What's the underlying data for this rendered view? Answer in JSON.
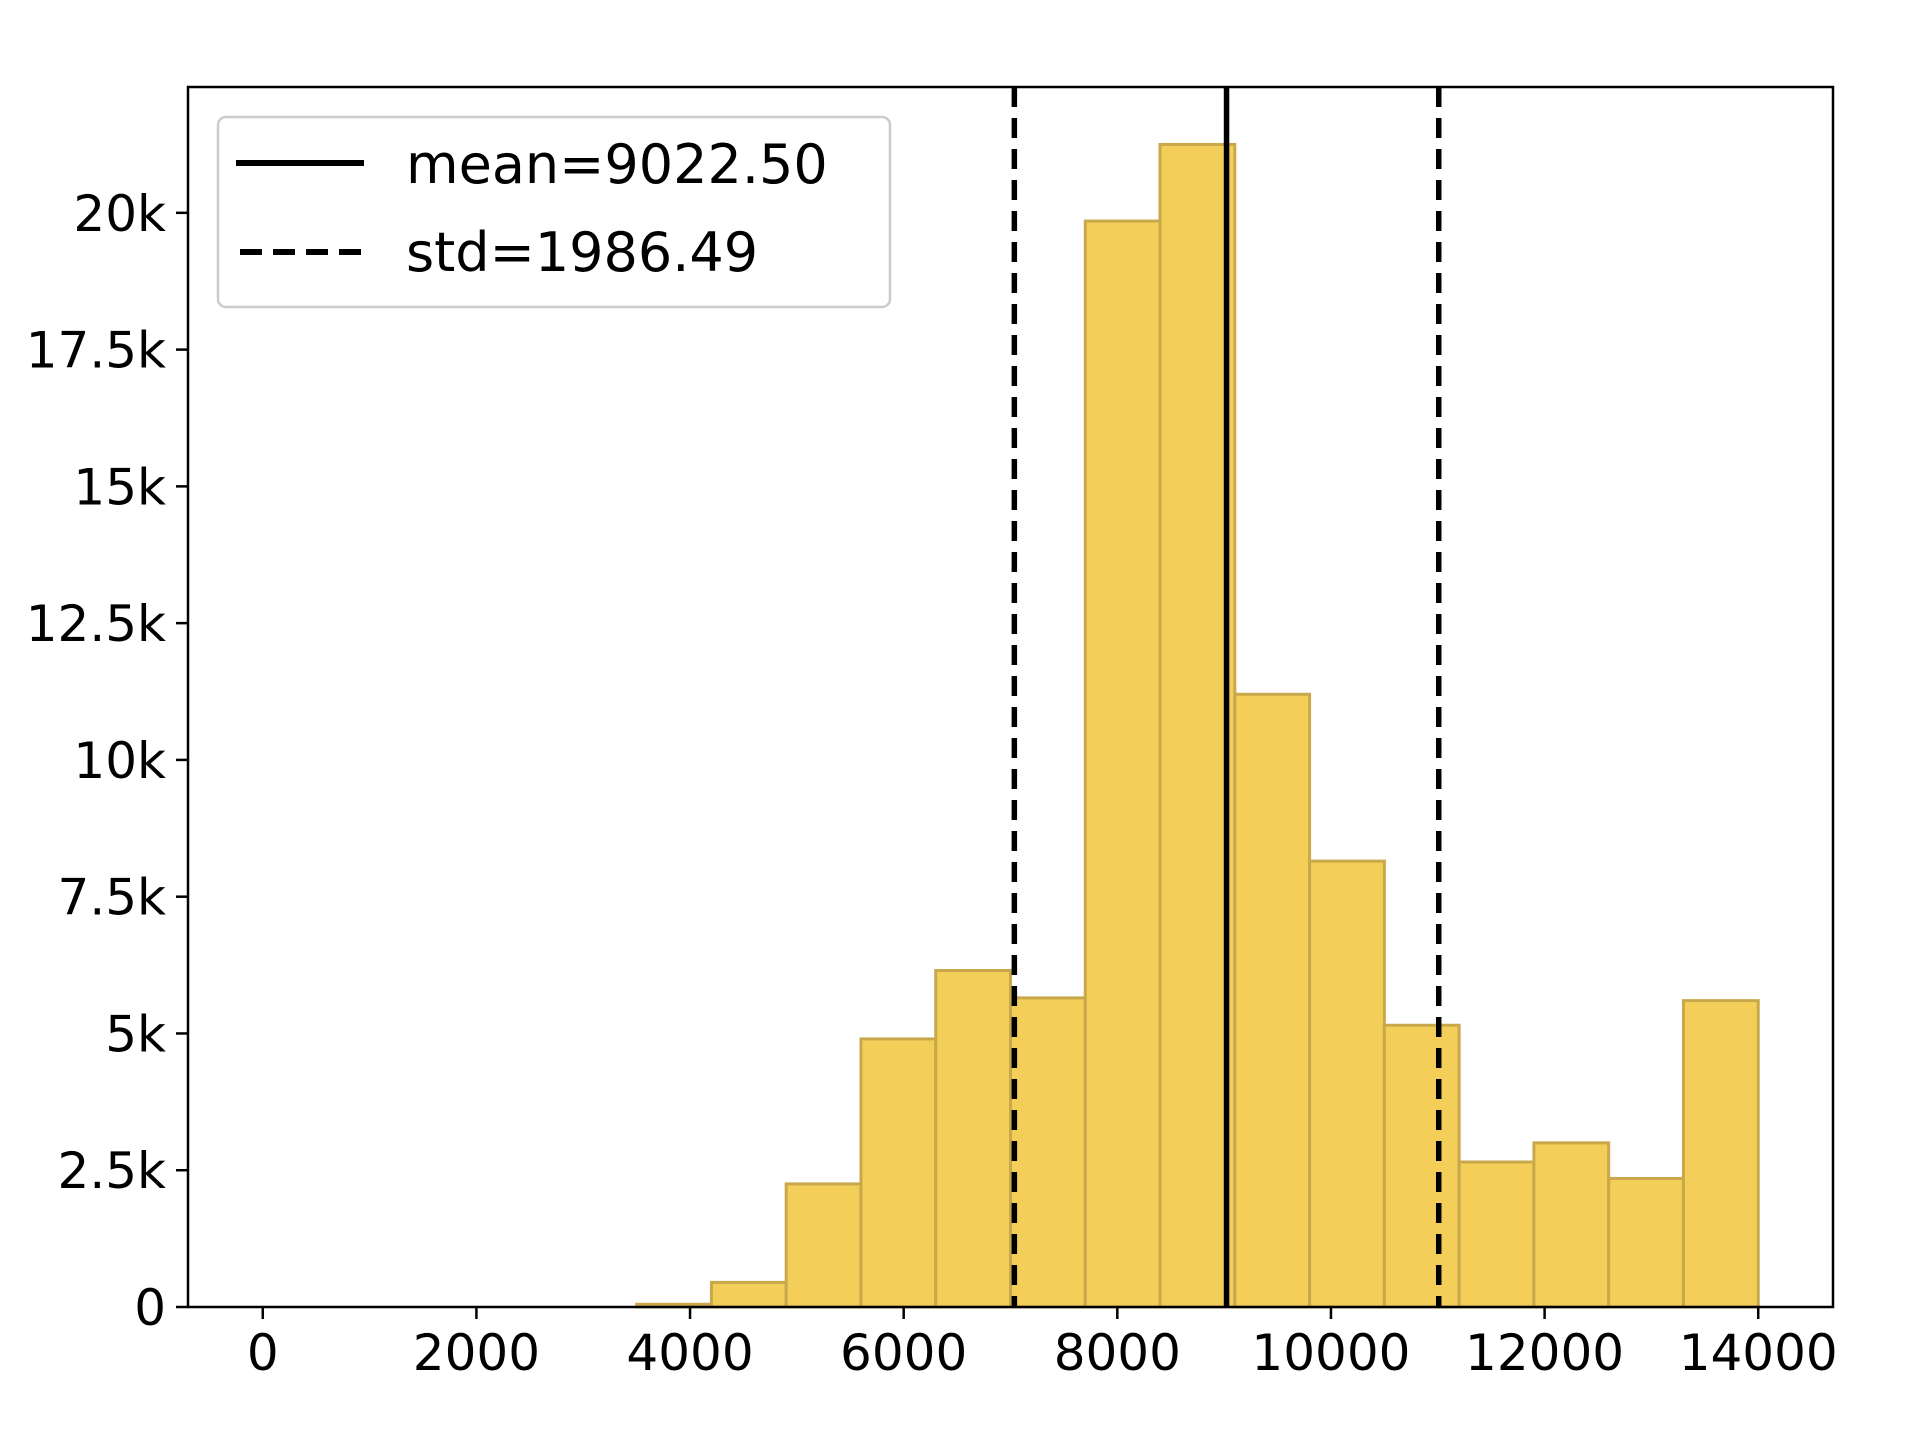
{
  "chart_data": {
    "type": "histogram",
    "title": "",
    "xlabel": "",
    "ylabel": "",
    "xlim": [
      -700,
      14700
    ],
    "ylim": [
      0,
      22300
    ],
    "x_ticks": [
      0,
      2000,
      4000,
      6000,
      8000,
      10000,
      12000,
      14000
    ],
    "x_tick_labels": [
      "0",
      "2000",
      "4000",
      "6000",
      "8000",
      "10000",
      "12000",
      "14000"
    ],
    "y_ticks": [
      0,
      2500,
      5000,
      7500,
      10000,
      12500,
      15000,
      17500,
      20000
    ],
    "y_tick_labels": [
      "0",
      "2.5k",
      "5k",
      "7.5k",
      "10k",
      "12.5k",
      "15k",
      "17.5k",
      "20k"
    ],
    "bin_edges": [
      0,
      700,
      1400,
      2100,
      2800,
      3500,
      4200,
      4900,
      5600,
      6300,
      7000,
      7700,
      8400,
      9100,
      9800,
      10500,
      11200,
      11900,
      12600,
      13300,
      14000
    ],
    "counts": [
      0,
      0,
      0,
      0,
      0,
      50,
      450,
      2250,
      4900,
      6150,
      5650,
      19850,
      21250,
      11200,
      8150,
      5150,
      2650,
      3000,
      2350,
      5600
    ],
    "bar_fill": "#f3cf59",
    "bar_edge": "#c9a84c",
    "mean": 9022.5,
    "std": 1986.49,
    "vlines": [
      {
        "x": 9022.5,
        "style": "solid"
      },
      {
        "x": 7036.01,
        "style": "dashed"
      },
      {
        "x": 11008.99,
        "style": "dashed"
      }
    ],
    "legend": {
      "placement": "upper-left",
      "entries": [
        {
          "label": "mean=9022.50",
          "style": "solid"
        },
        {
          "label": "std=1986.49",
          "style": "dashed"
        }
      ]
    },
    "grid": false
  }
}
